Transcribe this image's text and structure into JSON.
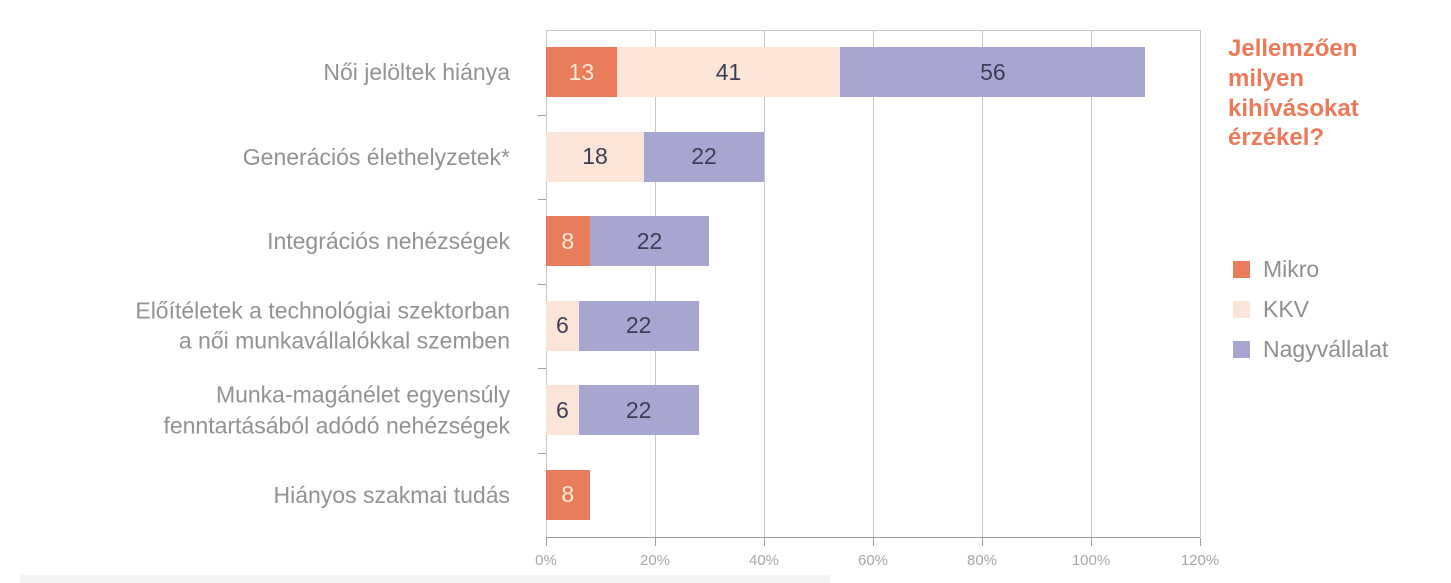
{
  "header": {
    "question": "Jellemzően milyen kihívásokat érzékel?",
    "question_lines": [
      "Jellemzően",
      "milyen",
      "kihívásokat",
      "érzékel?"
    ],
    "question_color": "#EC7A58"
  },
  "chart_data": {
    "type": "bar",
    "orientation": "horizontal",
    "stacked": true,
    "title": "Jellemzően milyen kihívásokat érzékel?",
    "categories": [
      "Női jelöltek hiánya",
      "Generációs élethelyzetek*",
      "Integrációs nehézségek",
      "Előítéletek a technológiai szektorban a női munkavállalókkal szemben",
      "Munka-magánélet egyensúly fenntartásából adódó nehézségek",
      "Hiányos szakmai tudás"
    ],
    "category_display_lines": [
      [
        "Női jelöltek hiánya"
      ],
      [
        "Generációs élethelyzetek*"
      ],
      [
        "Integrációs nehézségek"
      ],
      [
        "Előítéletek a technológiai szektorban",
        "a női munkavállalókkal szemben"
      ],
      [
        "Munka-magánélet egyensúly",
        "fenntartásából adódó nehézségek"
      ],
      [
        "Hiányos szakmai tudás"
      ]
    ],
    "series": [
      {
        "name": "Mikro",
        "color": "#E97C5B",
        "value_label_color": "#F9EADB",
        "values": [
          13,
          0,
          8,
          0,
          0,
          8
        ]
      },
      {
        "name": "KKV",
        "color": "#FBE5D8",
        "value_label_color": "#3D3D56",
        "values": [
          41,
          18,
          0,
          6,
          6,
          0
        ]
      },
      {
        "name": "Nagyvállalat",
        "color": "#A7A6D1",
        "value_label_color": "#3D3D56",
        "values": [
          56,
          22,
          22,
          22,
          22,
          0
        ]
      }
    ],
    "xlim": [
      0,
      120
    ],
    "x_tick_labels": [
      "0%",
      "20%",
      "40%",
      "60%",
      "80%",
      "100%",
      "120%"
    ],
    "grid": true,
    "legend_position": "right",
    "colors": {
      "gridline": "#C6C6C6",
      "axis_line": "#9E9E9E",
      "tick_label": "#A7A7A7",
      "category_label": "#929295"
    }
  }
}
